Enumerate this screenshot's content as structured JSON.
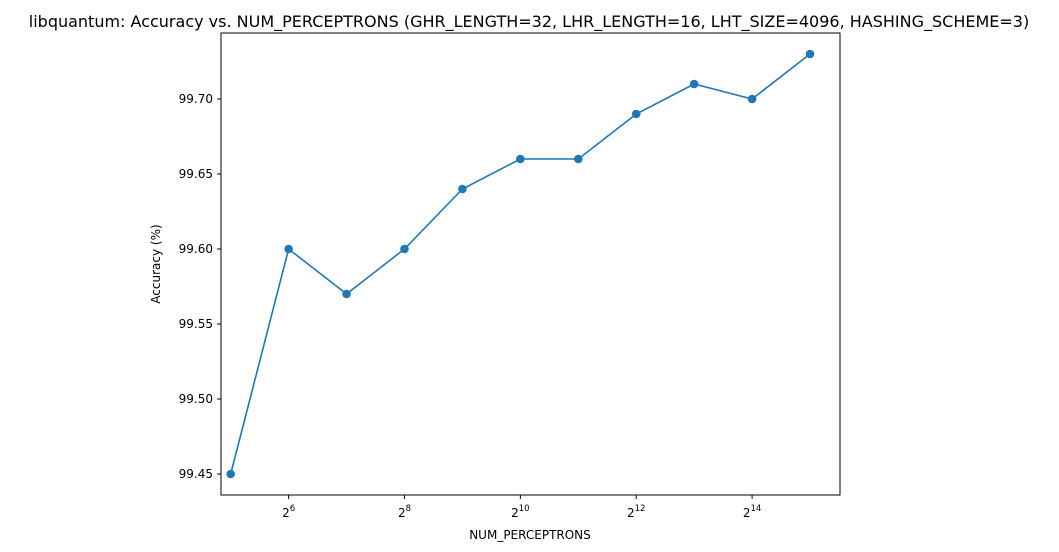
{
  "chart_data": {
    "type": "line",
    "title": "libquantum: Accuracy vs. NUM_PERCEPTRONS (GHR_LENGTH=32, LHR_LENGTH=16, LHT_SIZE=4096, HASHING_SCHEME=3)",
    "xlabel": "NUM_PERCEPTRONS",
    "ylabel": "Accuracy (%)",
    "x_scale": "log2",
    "x_ticks": [
      {
        "base": "2",
        "exp": "6",
        "value": 64
      },
      {
        "base": "2",
        "exp": "8",
        "value": 256
      },
      {
        "base": "2",
        "exp": "10",
        "value": 1024
      },
      {
        "base": "2",
        "exp": "12",
        "value": 4096
      },
      {
        "base": "2",
        "exp": "14",
        "value": 16384
      }
    ],
    "y_ticks": [
      "99.45",
      "99.50",
      "99.55",
      "99.60",
      "99.65",
      "99.70"
    ],
    "xlim": [
      28.5,
      46900
    ],
    "ylim": [
      99.436,
      99.744
    ],
    "grid": false,
    "color": "#1f77b4",
    "marker": "circle",
    "series": [
      {
        "x": [
          32,
          64,
          128,
          256,
          512,
          1024,
          2048,
          4096,
          8192,
          16384,
          32768
        ],
        "y": [
          99.45,
          99.6,
          99.57,
          99.6,
          99.64,
          99.66,
          99.66,
          99.69,
          99.71,
          99.7,
          99.73
        ]
      }
    ]
  }
}
